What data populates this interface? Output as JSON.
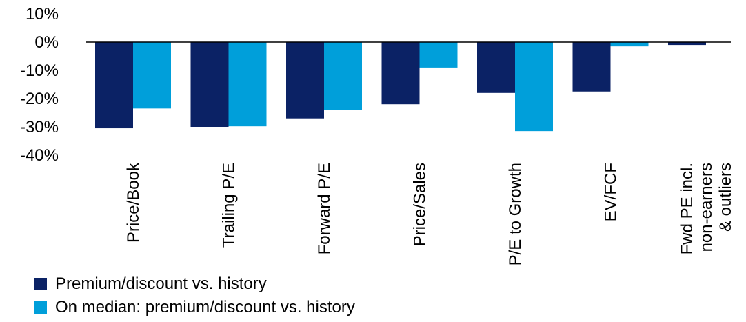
{
  "chart_data": {
    "type": "bar",
    "title": "",
    "xlabel": "",
    "ylabel": "",
    "ylim": [
      -40,
      10
    ],
    "yticks": [
      10,
      0,
      -10,
      -20,
      -30,
      -40
    ],
    "y_tick_format": "{v}%",
    "categories": [
      [
        "Price/Book"
      ],
      [
        "Trailing P/E"
      ],
      [
        "Forward P/E"
      ],
      [
        "Price/Sales"
      ],
      [
        "P/E to Growth"
      ],
      [
        "EV/FCF"
      ],
      [
        "Fwd PE incl.",
        "non-earners",
        "& outliers"
      ]
    ],
    "series": [
      {
        "name": "Premium/discount  vs. history",
        "color": "#0b2265",
        "values": [
          -30.5,
          -30.0,
          -27.0,
          -22.0,
          -18.0,
          -17.5,
          -1.0
        ]
      },
      {
        "name": "On median: premium/discount  vs. history",
        "color": "#009fda",
        "values": [
          -23.5,
          -29.8,
          -24.0,
          -9.0,
          -31.5,
          -1.5,
          null
        ]
      }
    ],
    "grid": false,
    "legend_position": "bottom-left"
  }
}
